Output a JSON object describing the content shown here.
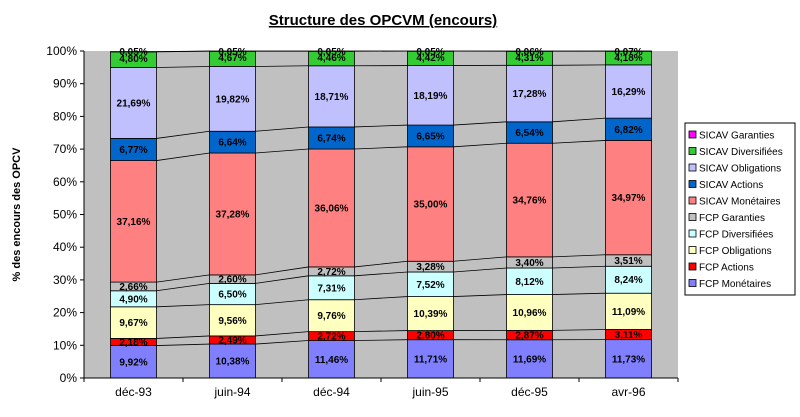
{
  "chart_data": {
    "type": "bar",
    "stacked": true,
    "title": "Structure des OPCVM (encours)",
    "xlabel": "",
    "ylabel": "% des encours des OPCV",
    "ylim": [
      0,
      100
    ],
    "yticks": [
      "0%",
      "10%",
      "20%",
      "30%",
      "40%",
      "50%",
      "60%",
      "70%",
      "80%",
      "90%",
      "100%"
    ],
    "categories": [
      "déc-93",
      "juin-94",
      "déc-94",
      "juin-95",
      "déc-95",
      "avr-96"
    ],
    "legend_position": "right",
    "grid": false,
    "plot_background": "#c0c0c0",
    "series": [
      {
        "name": "FCP Monétaires",
        "color": "#8080ff",
        "values": [
          9.92,
          10.38,
          11.46,
          11.71,
          11.69,
          11.73
        ],
        "labels": [
          "9,92%",
          "10,38%",
          "11,46%",
          "11,71%",
          "11,69%",
          "11,73%"
        ]
      },
      {
        "name": "FCP Actions",
        "color": "#ff0000",
        "values": [
          2.18,
          2.49,
          2.72,
          2.8,
          2.87,
          3.11
        ],
        "labels": [
          "2,18%",
          "2,49%",
          "2,72%",
          "2,80%",
          "2,87%",
          "3,11%"
        ]
      },
      {
        "name": "FCP Obligations",
        "color": "#ffffc0",
        "values": [
          9.67,
          9.56,
          9.76,
          10.39,
          10.96,
          11.09
        ],
        "labels": [
          "9,67%",
          "9,56%",
          "9,76%",
          "10,39%",
          "10,96%",
          "11,09%"
        ]
      },
      {
        "name": "FCP Diversifiées",
        "color": "#ccffff",
        "values": [
          4.9,
          6.5,
          7.31,
          7.52,
          8.12,
          8.24
        ],
        "labels": [
          "4,90%",
          "6,50%",
          "7,31%",
          "7,52%",
          "8,12%",
          "8,24%"
        ]
      },
      {
        "name": "FCP Garanties",
        "color": "#c0c0c0",
        "values": [
          2.66,
          2.6,
          2.72,
          3.28,
          3.4,
          3.51
        ],
        "labels": [
          "2,66%",
          "2,60%",
          "2,72%",
          "3,28%",
          "3,40%",
          "3,51%"
        ]
      },
      {
        "name": "SICAV Monétaires",
        "color": "#ff8080",
        "values": [
          37.16,
          37.28,
          36.06,
          35.0,
          34.76,
          34.97
        ],
        "labels": [
          "37,16%",
          "37,28%",
          "36,06%",
          "35,00%",
          "34,76%",
          "34,97%"
        ]
      },
      {
        "name": "SICAV Actions",
        "color": "#0066cc",
        "values": [
          6.77,
          6.64,
          6.74,
          6.65,
          6.54,
          6.82
        ],
        "labels": [
          "6,77%",
          "6,64%",
          "6,74%",
          "6,65%",
          "6,54%",
          "6,82%"
        ]
      },
      {
        "name": "SICAV Obligations",
        "color": "#c0c0ff",
        "values": [
          21.69,
          19.82,
          18.71,
          18.19,
          17.28,
          16.29
        ],
        "labels": [
          "21,69%",
          "19,82%",
          "18,71%",
          "18,19%",
          "17,28%",
          "16,29%"
        ]
      },
      {
        "name": "SICAV Diversifiées",
        "color": "#33cc33",
        "values": [
          4.8,
          4.67,
          4.46,
          4.42,
          4.31,
          4.18
        ],
        "labels": [
          "4,80%",
          "4,67%",
          "4,46%",
          "4,42%",
          "4,31%",
          "4,18%"
        ]
      },
      {
        "name": "SICAV Garanties",
        "color": "#ff00ff",
        "values": [
          0.05,
          0.05,
          0.05,
          0.05,
          0.06,
          0.07
        ],
        "labels": [
          "0,05%",
          "0,05%",
          "0,05%",
          "0,05%",
          "0,06%",
          "0,07%"
        ]
      }
    ],
    "legend_order": [
      "SICAV Garanties",
      "SICAV Diversifiées",
      "SICAV Obligations",
      "SICAV Actions",
      "SICAV Monétaires",
      "FCP Garanties",
      "FCP Diversifiées",
      "FCP Obligations",
      "FCP Actions",
      "FCP Monétaires"
    ]
  }
}
